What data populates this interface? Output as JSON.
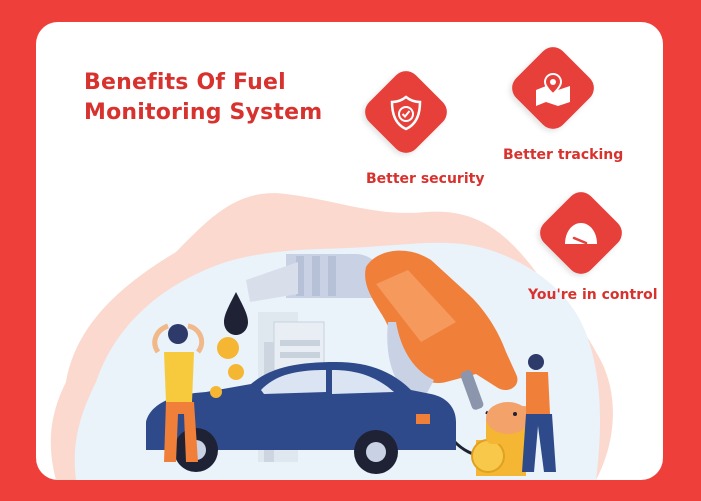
{
  "title": {
    "line1": "Benefits Of Fuel",
    "line2": "Monitoring System"
  },
  "benefits": [
    {
      "label": "Better security",
      "icon": "shield-check-icon"
    },
    {
      "label": "Better tracking",
      "icon": "map-pin-icon"
    },
    {
      "label": "You're in control",
      "icon": "gauge-icon"
    }
  ],
  "colors": {
    "background": "#ee3f3b",
    "card": "#ffffff",
    "accent": "#e7403b",
    "title": "#d8322e",
    "car": "#2f4a8a",
    "nozzle": "#f07f3a"
  }
}
